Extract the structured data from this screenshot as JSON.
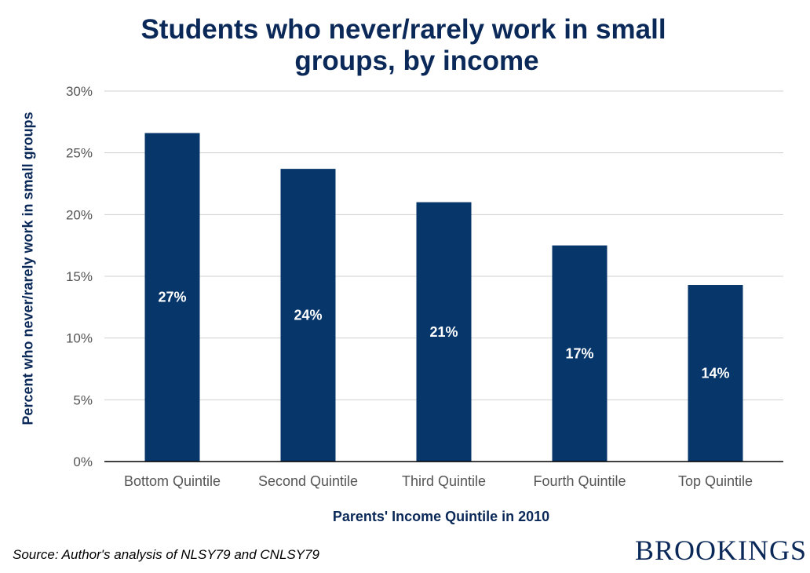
{
  "chart_data": {
    "type": "bar",
    "title_lines": [
      "Students who never/rarely work in small",
      "groups, by income"
    ],
    "xlabel": "Parents' Income Quintile in 2010",
    "ylabel": "Percent who never/rarely work in small groups",
    "categories": [
      "Bottom Quintile",
      "Second Quintile",
      "Third Quintile",
      "Fourth Quintile",
      "Top Quintile"
    ],
    "values": [
      26.6,
      23.7,
      21.0,
      17.5,
      14.3
    ],
    "data_labels": [
      "27%",
      "24%",
      "21%",
      "17%",
      "14%"
    ],
    "ylim": [
      0,
      30
    ],
    "yticks": [
      0,
      5,
      10,
      15,
      20,
      25,
      30
    ],
    "ytick_labels": [
      "0%",
      "5%",
      "10%",
      "15%",
      "20%",
      "25%",
      "30%"
    ],
    "grid": true,
    "bar_color": "#07376a",
    "label_color": "#ffffff"
  },
  "footer": {
    "source": "Source: Author's analysis of NLSY79 and CNLSY79",
    "logo": "BROOKINGS"
  }
}
